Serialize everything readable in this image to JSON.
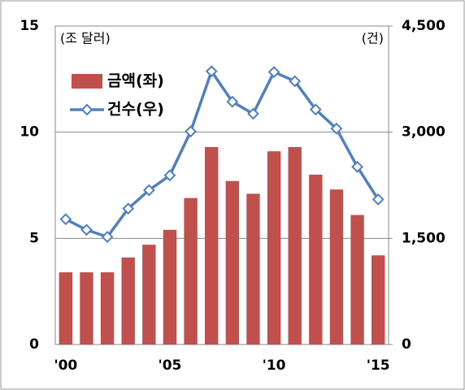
{
  "chart_data": {
    "type": "bar-line",
    "ylabel": "(조 달러)",
    "y2label": "(건)",
    "categories": [
      "'00",
      null,
      null,
      null,
      null,
      "'05",
      null,
      null,
      null,
      null,
      "'10",
      null,
      null,
      null,
      null,
      "'15"
    ],
    "series": [
      {
        "name": "금액(좌)",
        "type": "bar",
        "color": "#c0504d",
        "axis": "y",
        "values": [
          3.4,
          3.4,
          3.4,
          4.1,
          4.7,
          5.4,
          6.9,
          9.3,
          7.7,
          7.1,
          9.1,
          9.3,
          8.0,
          7.3,
          6.1,
          4.2
        ]
      },
      {
        "name": "건수(우)",
        "type": "line",
        "color": "#4f81bd",
        "axis": "y2",
        "values": [
          1770,
          1620,
          1520,
          1920,
          2180,
          2390,
          3010,
          3860,
          3430,
          3260,
          3850,
          3720,
          3320,
          3050,
          2510,
          2050
        ]
      }
    ],
    "ylim": [
      0,
      15
    ],
    "yticks": [
      0,
      5,
      10,
      15
    ],
    "y2lim": [
      0,
      4500
    ],
    "y2ticks": [
      0,
      {
        "value": 1500,
        "label": "1,500"
      },
      {
        "value": 3000,
        "label": "3,000"
      },
      {
        "value": 4500,
        "label": "4,500"
      }
    ],
    "grid": true
  }
}
